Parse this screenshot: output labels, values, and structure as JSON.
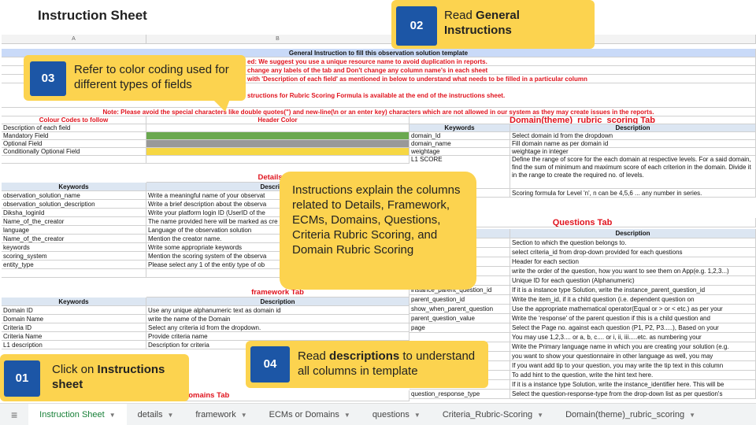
{
  "header": {
    "title": "Instruction Sheet"
  },
  "callouts": [
    {
      "number": "02",
      "text": "Read ",
      "bold": "General Instructions"
    },
    {
      "number": "03",
      "text": "Refer to color coding used for different types of fields"
    },
    {
      "number": "04",
      "text": "Read ",
      "bold": "descriptions",
      "text_after": " to understand all columns in template"
    },
    {
      "number": "01",
      "text": "Click on ",
      "bold": "Instructions sheet"
    }
  ],
  "note_box": "Instructions explain the columns related to Details, Framework, ECMs, Domains, Questions, Criteria Rubric Scoring, and Domain Rubric Scoring",
  "sheet": {
    "columns": [
      "A",
      "B",
      "E"
    ],
    "general": {
      "title": "General Instruction to fill this observation solution template",
      "lines": [
        "ed: We suggest you use a unique resource name to avoid duplication in reports.",
        "change any labels of the tab and Don't change any column name's in each sheet",
        "with 'Description of each field' as mentioned in below to understand what needs to be filled in a particular column",
        "structions for Rubric Scoring Formula is available at the end of the instructions sheet."
      ],
      "note": "Note: Please avoid the special characters like double quotes(\") and new-line(\\n or an enter key) characters which are not allowed in our system as they may create issues in the reports."
    },
    "color_codes": {
      "header": [
        "Colour Codes to follow",
        "Header Color"
      ],
      "rows": [
        {
          "label": "Description of each field"
        },
        {
          "label": "Mandatory Field",
          "color": "#6aa84f"
        },
        {
          "label": "Optional Field",
          "color": "#999999"
        },
        {
          "label": "Conditionally Optional Field",
          "color": "#f6d743"
        }
      ]
    },
    "details": {
      "title": "Details Tab",
      "header": [
        "Keywords",
        "Description"
      ],
      "rows": [
        [
          "observation_solution_name",
          "Write a meaningful name of your observat"
        ],
        [
          "observation_solution_description",
          "Write a brief description about the observa"
        ],
        [
          "Diksha_loginId",
          "Write your platform login ID (UserID of the"
        ],
        [
          "Name_of_the_creator",
          "The name provided here will be marked as cre"
        ],
        [
          "language",
          "Language of the observation solution"
        ],
        [
          "Name_of_the_creator",
          "Mention the creator name."
        ],
        [
          "keywords",
          "Write some appropriate keywords"
        ],
        [
          "scoring_system",
          "Mention the scoring system of the observa"
        ],
        [
          "entity_type",
          "Please select any 1 of the entiy type of ob"
        ]
      ]
    },
    "framework": {
      "title": "framework Tab",
      "header": [
        "Keywords",
        "Description"
      ],
      "rows": [
        [
          "Domain ID",
          "Use any unique alphanumeric text as domain id"
        ],
        [
          "Domain Name",
          "write the name of the Domain"
        ],
        [
          "Criteria ID",
          "Select any criteria id from the dropdown."
        ],
        [
          "Criteria Name",
          "Provide criteria name"
        ],
        [
          "L1 description",
          "Description for criteria"
        ]
      ]
    },
    "ecm_title": "r Domains Tab",
    "domain": {
      "title": "Domain(theme)_rubric_scoring Tab",
      "header": [
        "Keywords",
        "Description"
      ],
      "rows": [
        [
          "domain_Id",
          "Select domain id from the dropdown"
        ],
        [
          "domain_name",
          "Fill domain name as per domain id"
        ],
        [
          "weightage",
          "weightage in integer"
        ],
        [
          "L1 SCORE",
          "Define the range of score for the each domain at respective levels. For a said domain, find the sum of minimum and maximum score of each criterion in the domain. Divide it in the range to create the required no. of levels."
        ]
      ],
      "formula": "Scoring formula for Level 'n', n can be 4,5,6 ... any number in series."
    },
    "questions": {
      "title": "Questions Tab",
      "header": [
        "Keywords",
        "Description"
      ],
      "rows": [
        {
          "description": "Section to which the question belongs to."
        },
        {
          "description": "select criteria_id from drop-down provided for each questions"
        },
        {
          "description": "Header for each section"
        },
        {
          "description": "write the order of the question, how you want to see them on App(e.g. 1,2,3...)"
        },
        {
          "description": "Unique ID for each question (Alphanumeric)"
        },
        {
          "keyword": "instance_parent_question_id",
          "description": "If it is a instance type Solution, write the instance_parent_question_id"
        },
        {
          "keyword": "parent_question_id",
          "description": "Write the item_id, if it a child question (i.e. dependent question on"
        },
        {
          "keyword": "show_when_parent_question",
          "description": "Use the appropriate mathematical operator(Equal or > or < etc.) as per your"
        },
        {
          "keyword": "parent_question_value",
          "description": "Write the 'response' of the parent question if this is a child question and"
        },
        {
          "keyword": "page",
          "description": "Select the Page no. against each question (P1, P2, P3.....), Based on your"
        },
        {
          "description": "You may use 1,2,3.... or a, b, c.... or i, ii, iii.....etc. as numbering your"
        },
        {
          "description": "Write the Primary language name in which you are creating your solution (e.g."
        },
        {
          "description": "you want to show your questionnaire in other language as well, you may"
        },
        {
          "description": "If you want add tip to your question, you may write the tip text in this column"
        },
        {
          "description": "To add hint to the question, write the hint text here."
        },
        {
          "keyword": "instance_identifier",
          "description": "If it is a instance type Solution, write the instance_identifier here. This will be"
        },
        {
          "keyword": "question_response_type",
          "description": "Select the question-response-type from the drop-down list as per question's"
        }
      ]
    }
  },
  "tabs": [
    "Instruction Sheet",
    "details",
    "framework",
    "ECMs or Domains",
    "questions",
    "Criteria_Rubric-Scoring",
    "Domain(theme)_rubric_scoring"
  ]
}
